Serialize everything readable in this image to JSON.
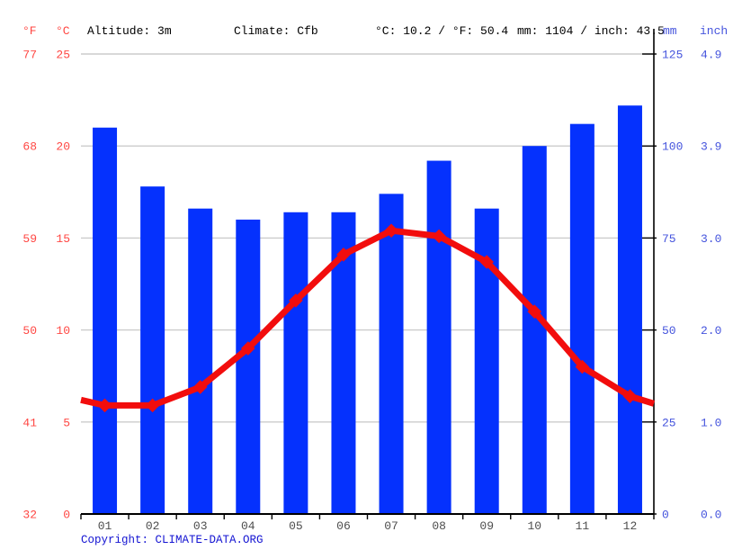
{
  "header": {
    "f_label": "°F",
    "c_label": "°C",
    "altitude": "Altitude: 3m",
    "climate": "Climate: Cfb",
    "temp_summary": "°C: 10.2 / °F: 50.4",
    "precip_summary": "mm: 1104 / inch: 43.5",
    "mm_label": "mm",
    "inch_label": "inch"
  },
  "axes": {
    "left_f_ticks": [
      "77",
      "68",
      "59",
      "50",
      "41",
      "32"
    ],
    "left_c_ticks": [
      "25",
      "20",
      "15",
      "10",
      "5",
      "0"
    ],
    "right_mm_ticks": [
      "125",
      "100",
      "75",
      "50",
      "25",
      "0"
    ],
    "right_inch_ticks": [
      "4.9",
      "3.9",
      "3.0",
      "2.0",
      "1.0",
      "0.0"
    ]
  },
  "chart_data": {
    "type": "combo",
    "categories": [
      "01",
      "02",
      "03",
      "04",
      "05",
      "06",
      "07",
      "08",
      "09",
      "10",
      "11",
      "12"
    ],
    "series": [
      {
        "name": "Precipitation (mm)",
        "type": "bar",
        "values": [
          105,
          89,
          83,
          80,
          82,
          82,
          87,
          96,
          83,
          100,
          106,
          111
        ]
      },
      {
        "name": "Temperature (°C)",
        "type": "line",
        "values": [
          5.9,
          5.9,
          6.9,
          9.0,
          11.6,
          14.1,
          15.4,
          15.1,
          13.7,
          11.0,
          8.0,
          6.4
        ]
      }
    ],
    "line_edge_values": {
      "left": 6.2,
      "right": 6.0
    },
    "ylim_c": [
      0,
      25
    ],
    "ylim_mm": [
      0,
      125
    ],
    "grid": true,
    "annual_mean_c": 10.2,
    "annual_precip_mm": 1104
  },
  "footer": {
    "copyright_prefix": "Copyright: ",
    "copyright_link": "CLIMATE-DATA.ORG"
  },
  "colors": {
    "bar": "#0531fd",
    "line": "#f20d0d",
    "left_axis_text": "#ff4743",
    "right_axis_text": "#4554dd",
    "grid": "#cccccc",
    "axis": "#000000",
    "month_text": "#4d4d4d",
    "copyright": "#1414d2"
  }
}
